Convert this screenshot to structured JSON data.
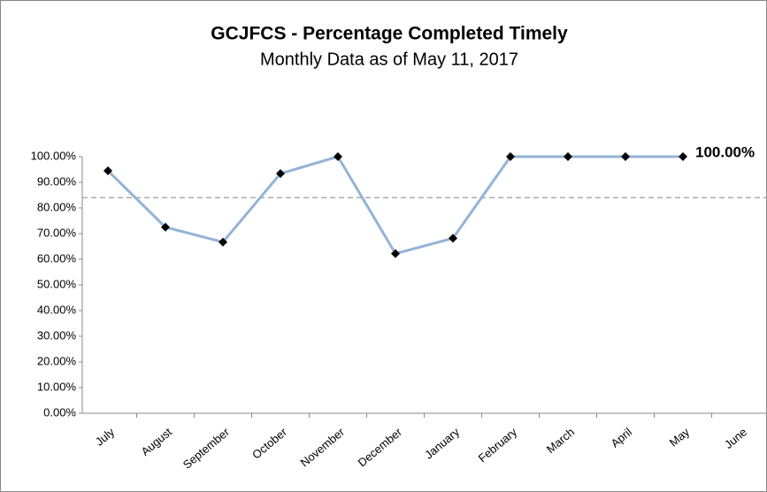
{
  "chart_data": {
    "type": "line",
    "title": "GCJFCS - Percentage Completed Timely",
    "subtitle": "Monthly Data as of May 11, 2017",
    "categories": [
      "July",
      "August",
      "September",
      "October",
      "November",
      "December",
      "January",
      "February",
      "March",
      "April",
      "May",
      "June"
    ],
    "series": [
      {
        "name": "Percentage Completed Timely",
        "color": "#95b3d7",
        "values": [
          94.5,
          72.5,
          66.7,
          93.4,
          100,
          62.2,
          68.2,
          100,
          100,
          100,
          100,
          null
        ],
        "value_labels": [
          null,
          null,
          null,
          null,
          null,
          null,
          null,
          null,
          null,
          null,
          "100.00%",
          null
        ]
      }
    ],
    "reference_line": 84,
    "ylim": [
      0,
      100
    ],
    "yticks": [
      {
        "value": 0,
        "label": "0.00%"
      },
      {
        "value": 10,
        "label": "10.00%"
      },
      {
        "value": 20,
        "label": "20.00%"
      },
      {
        "value": 30,
        "label": "30.00%"
      },
      {
        "value": 40,
        "label": "40.00%"
      },
      {
        "value": 50,
        "label": "50.00%"
      },
      {
        "value": 60,
        "label": "60.00%"
      },
      {
        "value": 70,
        "label": "70.00%"
      },
      {
        "value": 80,
        "label": "80.00%"
      },
      {
        "value": 90,
        "label": "90.00%"
      },
      {
        "value": 100,
        "label": "100.00%"
      }
    ]
  }
}
